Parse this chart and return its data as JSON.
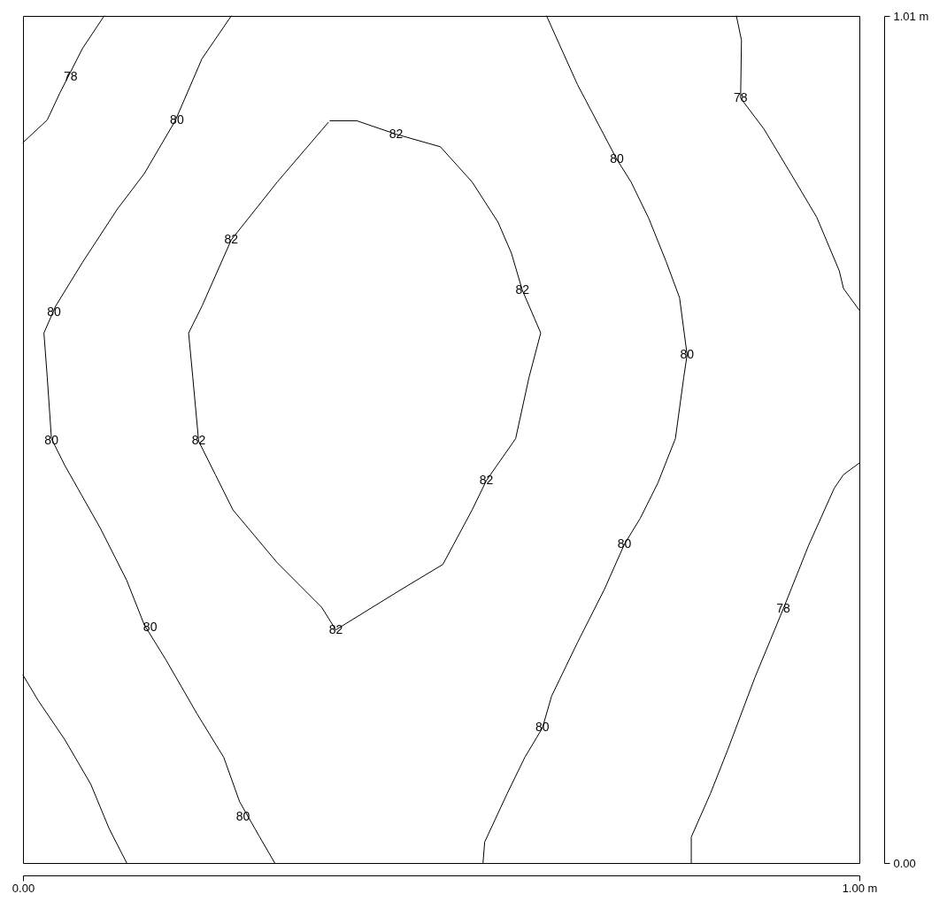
{
  "chart_data": {
    "type": "line",
    "xlim": [
      0,
      1
    ],
    "ylim": [
      0,
      1.01
    ],
    "xticks": [
      {
        "value": 0,
        "label": "0.00"
      },
      {
        "value": 1,
        "label": "1.00 m"
      }
    ],
    "yticks": [
      {
        "value": 0,
        "label": "0.00"
      },
      {
        "value": 1.01,
        "label": "1.01 m"
      }
    ],
    "grid": false,
    "marker": "none",
    "line_style": "solid",
    "series": [
      {
        "color": "#000000",
        "x": [
          0,
          0.029,
          0.044,
          0.071,
          0.097
        ],
        "values": [
          0.859,
          0.886,
          0.918,
          0.971,
          1.01
        ]
      },
      {
        "color": "#000000",
        "x": [
          0.249,
          0.214,
          0.182,
          0.145,
          0.113,
          0.071,
          0.039,
          0.025,
          0.029,
          0.034,
          0.05,
          0.092,
          0.124,
          0.145,
          0.171,
          0.208,
          0.24,
          0.259,
          0.283,
          0.301
        ],
        "values": [
          1.01,
          0.959,
          0.885,
          0.822,
          0.78,
          0.716,
          0.664,
          0.632,
          0.579,
          0.506,
          0.474,
          0.4,
          0.337,
          0.284,
          0.242,
          0.178,
          0.126,
          0.073,
          0.031,
          0
        ]
      },
      {
        "color": "#000000",
        "x": [
          0,
          0.018,
          0.05,
          0.081,
          0.103,
          0.124
        ],
        "values": [
          0.224,
          0.194,
          0.147,
          0.094,
          0.041,
          0
        ]
      },
      {
        "color": "#000000",
        "x": [
          0.367,
          0.399,
          0.446,
          0.499,
          0.537,
          0.568,
          0.584,
          0.597,
          0.619,
          0.605,
          0.589,
          0.554,
          0.537,
          0.502,
          0.452,
          0.374,
          0.357,
          0.304,
          0.251,
          0.23,
          0.21,
          0.203,
          0.198,
          0.214,
          0.249,
          0.304,
          0.365
        ],
        "values": [
          0.885,
          0.885,
          0.869,
          0.854,
          0.812,
          0.764,
          0.727,
          0.683,
          0.632,
          0.579,
          0.506,
          0.456,
          0.421,
          0.356,
          0.326,
          0.278,
          0.305,
          0.358,
          0.421,
          0.463,
          0.503,
          0.579,
          0.632,
          0.664,
          0.743,
          0.812,
          0.883
        ]
      },
      {
        "color": "#000000",
        "x": [
          0.626,
          0.663,
          0.71,
          0.727,
          0.748,
          0.769,
          0.785,
          0.794,
          0.79,
          0.78,
          0.759,
          0.738,
          0.719,
          0.695,
          0.663,
          0.632,
          0.621,
          0.6,
          0.579,
          0.552,
          0.55
        ],
        "values": [
          1.01,
          0.928,
          0.839,
          0.812,
          0.769,
          0.717,
          0.674,
          0.606,
          0.579,
          0.506,
          0.453,
          0.411,
          0.38,
          0.326,
          0.263,
          0.199,
          0.161,
          0.126,
          0.083,
          0.025,
          0
        ]
      },
      {
        "color": "#000000",
        "x": [
          0.853,
          0.859,
          0.858,
          0.886,
          0.918,
          0.949,
          0.976,
          0.981,
          1.0
        ],
        "values": [
          1.01,
          0.981,
          0.912,
          0.875,
          0.822,
          0.77,
          0.706,
          0.685,
          0.659
        ]
      },
      {
        "color": "#000000",
        "x": [
          1.0,
          0.981,
          0.97,
          0.939,
          0.909,
          0.875,
          0.843,
          0.822,
          0.799,
          0.799
        ],
        "values": [
          0.477,
          0.463,
          0.447,
          0.378,
          0.303,
          0.221,
          0.136,
          0.083,
          0.031,
          0
        ]
      }
    ],
    "annotations": [
      {
        "text": "78",
        "x": 0.057,
        "y": 0.937
      },
      {
        "text": "80",
        "x": 0.184,
        "y": 0.885
      },
      {
        "text": "80",
        "x": 0.037,
        "y": 0.656
      },
      {
        "text": "80",
        "x": 0.034,
        "y": 0.503
      },
      {
        "text": "80",
        "x": 0.152,
        "y": 0.281
      },
      {
        "text": "80",
        "x": 0.263,
        "y": 0.055
      },
      {
        "text": "82",
        "x": 0.446,
        "y": 0.869
      },
      {
        "text": "82",
        "x": 0.249,
        "y": 0.743
      },
      {
        "text": "82",
        "x": 0.597,
        "y": 0.683
      },
      {
        "text": "82",
        "x": 0.21,
        "y": 0.503
      },
      {
        "text": "82",
        "x": 0.554,
        "y": 0.456
      },
      {
        "text": "82",
        "x": 0.374,
        "y": 0.278
      },
      {
        "text": "80",
        "x": 0.71,
        "y": 0.839
      },
      {
        "text": "80",
        "x": 0.794,
        "y": 0.606
      },
      {
        "text": "80",
        "x": 0.719,
        "y": 0.38
      },
      {
        "text": "80",
        "x": 0.621,
        "y": 0.161
      },
      {
        "text": "78",
        "x": 0.858,
        "y": 0.912
      },
      {
        "text": "78",
        "x": 0.909,
        "y": 0.303
      }
    ]
  }
}
